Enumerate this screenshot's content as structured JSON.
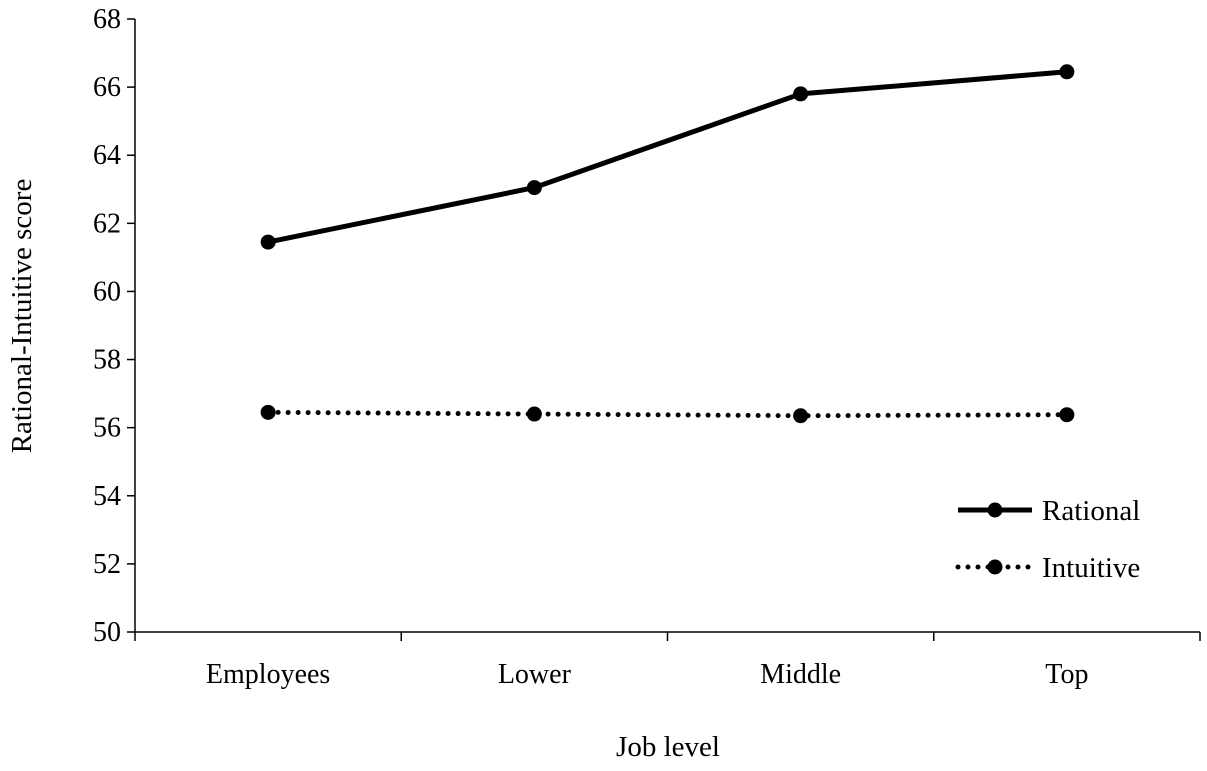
{
  "chart_data": {
    "type": "line",
    "title": "",
    "xlabel": "Job level",
    "ylabel": "Rational-Intuitive score",
    "categories": [
      "Employees",
      "Lower",
      "Middle",
      "Top"
    ],
    "ylim": [
      50,
      68
    ],
    "yticks": [
      50,
      52,
      54,
      56,
      58,
      60,
      62,
      64,
      66,
      68
    ],
    "grid": false,
    "legend_position": "bottom-right",
    "series": [
      {
        "name": "Rational",
        "style": "solid",
        "color": "#000000",
        "values": [
          61.45,
          63.05,
          65.8,
          66.45
        ]
      },
      {
        "name": "Intuitive",
        "style": "dotted",
        "color": "#000000",
        "values": [
          56.45,
          56.4,
          56.35,
          56.38
        ]
      }
    ]
  }
}
